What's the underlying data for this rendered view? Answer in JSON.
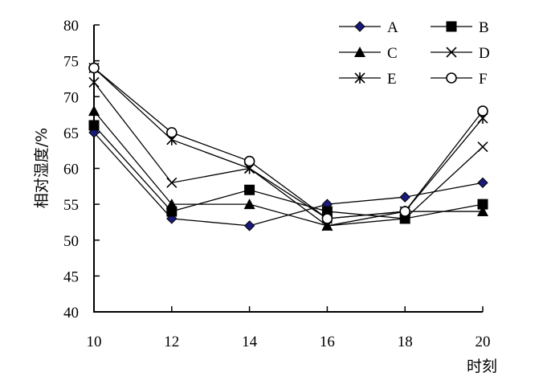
{
  "chart_data": {
    "type": "line",
    "xlabel": "时刻",
    "ylabel": "相对湿度/%",
    "x": [
      10,
      12,
      14,
      16,
      18,
      20
    ],
    "xlim": [
      10,
      20
    ],
    "ylim": [
      40,
      80
    ],
    "xticks": [
      "10",
      "12",
      "14",
      "16",
      "18",
      "20"
    ],
    "yticks": [
      "40",
      "45",
      "50",
      "55",
      "60",
      "65",
      "70",
      "75",
      "80"
    ],
    "grid": false,
    "legend_position": "top-right",
    "series": [
      {
        "name": "A",
        "marker": "diamond",
        "values": [
          65,
          53,
          52,
          55,
          56,
          58
        ]
      },
      {
        "name": "B",
        "marker": "square",
        "values": [
          66,
          54,
          57,
          54,
          53,
          55
        ]
      },
      {
        "name": "C",
        "marker": "triangle",
        "values": [
          68,
          55,
          55,
          52,
          54,
          54
        ]
      },
      {
        "name": "D",
        "marker": "x",
        "values": [
          72,
          58,
          60,
          52,
          53,
          63
        ]
      },
      {
        "name": "E",
        "marker": "asterisk",
        "values": [
          74,
          64,
          60,
          53,
          54,
          67
        ]
      },
      {
        "name": "F",
        "marker": "circle",
        "values": [
          74,
          65,
          61,
          53,
          54,
          68
        ]
      }
    ]
  }
}
